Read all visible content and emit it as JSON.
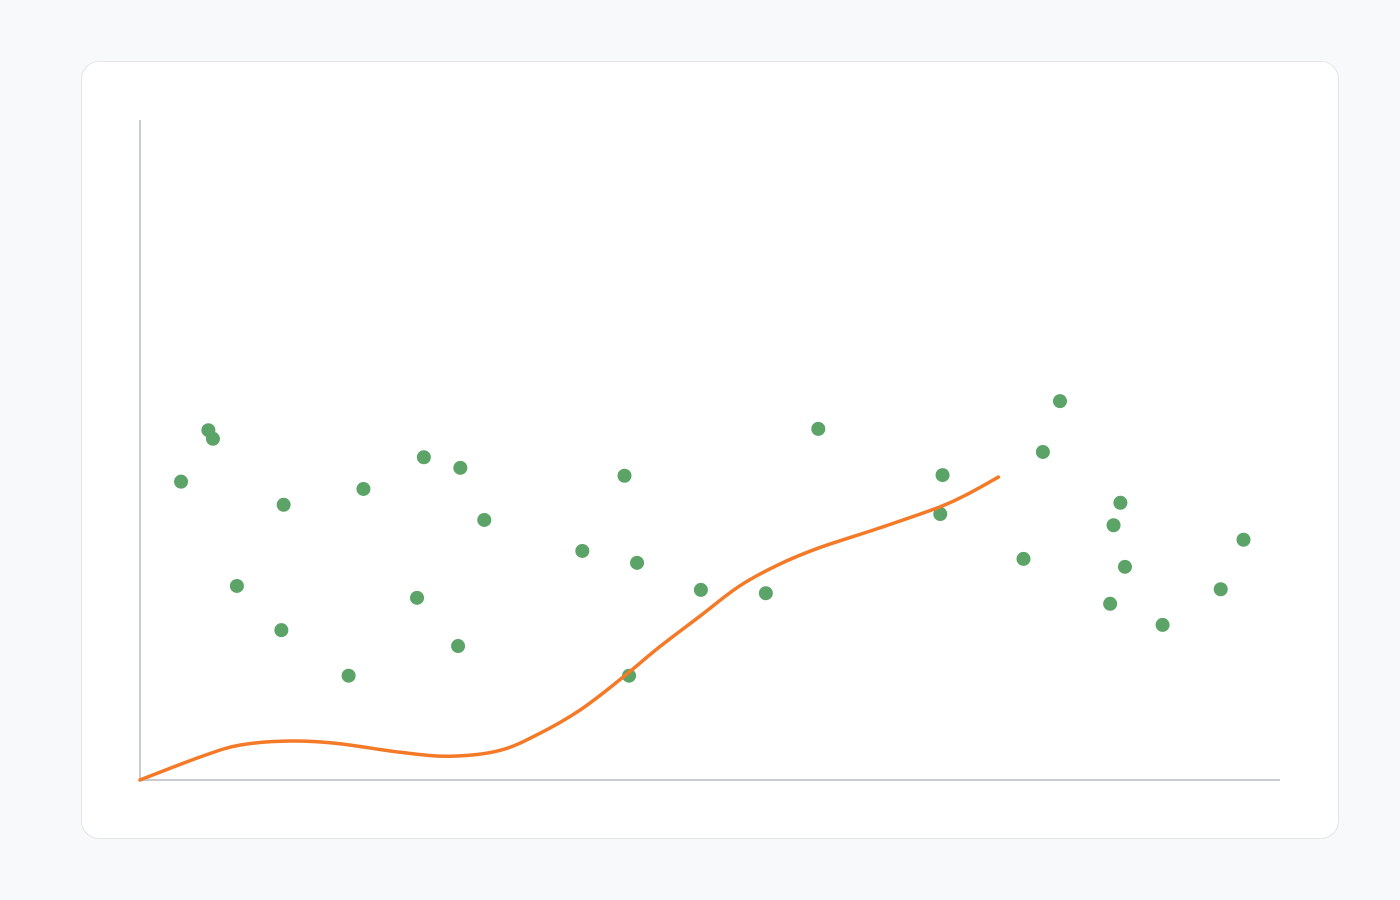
{
  "chart_data": {
    "type": "scatter",
    "title": "",
    "xlabel": "",
    "ylabel": "",
    "xlim": [
      0,
      100
    ],
    "ylim": [
      0,
      100
    ],
    "grid": false,
    "legend": "none",
    "colors": {
      "points": "#5ba367",
      "line": "#f47a28",
      "axis": "#c8cad4",
      "card": "#ffffff",
      "background": "#f8f9fb"
    },
    "points": [
      [
        3.6,
        45.2
      ],
      [
        6.0,
        53.0
      ],
      [
        6.4,
        51.7
      ],
      [
        8.5,
        29.4
      ],
      [
        12.6,
        41.7
      ],
      [
        12.4,
        22.7
      ],
      [
        18.3,
        15.8
      ],
      [
        19.6,
        44.1
      ],
      [
        24.3,
        27.6
      ],
      [
        24.9,
        48.9
      ],
      [
        27.9,
        20.3
      ],
      [
        28.1,
        47.3
      ],
      [
        30.2,
        39.4
      ],
      [
        38.8,
        34.7
      ],
      [
        42.5,
        46.1
      ],
      [
        43.6,
        32.9
      ],
      [
        42.9,
        15.8
      ],
      [
        49.2,
        28.8
      ],
      [
        54.9,
        28.3
      ],
      [
        59.5,
        53.2
      ],
      [
        70.4,
        46.2
      ],
      [
        70.2,
        40.3
      ],
      [
        77.5,
        33.5
      ],
      [
        79.2,
        49.7
      ],
      [
        80.7,
        57.4
      ],
      [
        86.0,
        42.0
      ],
      [
        85.4,
        38.6
      ],
      [
        86.4,
        32.3
      ],
      [
        85.1,
        26.7
      ],
      [
        89.7,
        23.5
      ],
      [
        94.8,
        28.9
      ],
      [
        96.8,
        36.4
      ]
    ],
    "line": [
      [
        0,
        0
      ],
      [
        5.3,
        3.5
      ],
      [
        8.8,
        5.3
      ],
      [
        13.2,
        5.9
      ],
      [
        17.5,
        5.5
      ],
      [
        22.8,
        4.2
      ],
      [
        27.2,
        3.6
      ],
      [
        31.6,
        4.5
      ],
      [
        35.1,
        7.1
      ],
      [
        38.6,
        10.6
      ],
      [
        42.1,
        15.2
      ],
      [
        45.6,
        20.2
      ],
      [
        49.1,
        24.8
      ],
      [
        52.6,
        29.4
      ],
      [
        56.1,
        32.7
      ],
      [
        59.6,
        35.2
      ],
      [
        64.9,
        38.2
      ],
      [
        70.2,
        41.4
      ],
      [
        72.8,
        43.5
      ],
      [
        75.3,
        45.9
      ]
    ]
  }
}
